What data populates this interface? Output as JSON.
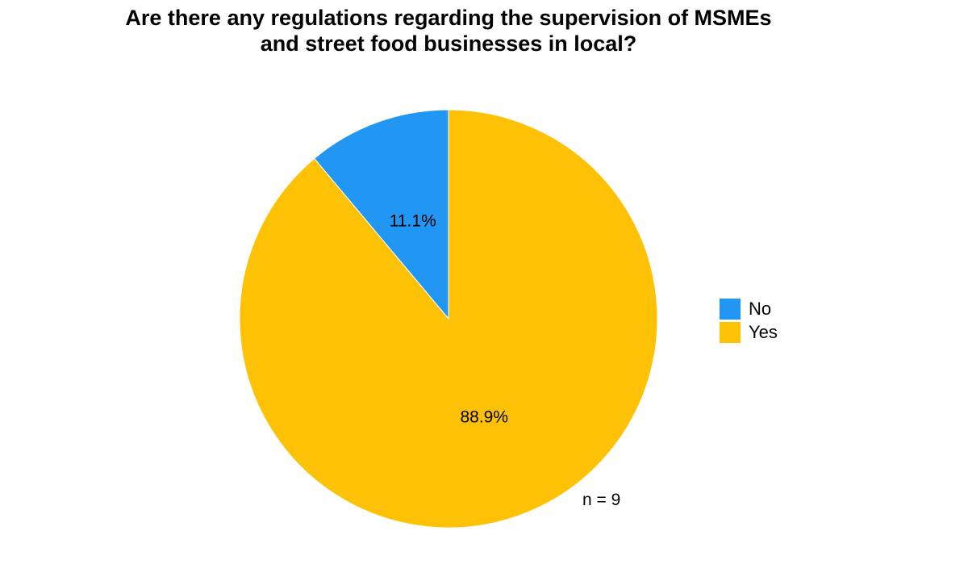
{
  "chart_data": {
    "type": "pie",
    "title_lines": [
      "Are there any regulations regarding the supervision of MSMEs",
      "and street food businesses in local?"
    ],
    "categories": [
      "No",
      "Yes"
    ],
    "values": [
      11.1,
      88.9
    ],
    "labels": [
      "11.1%",
      "88.9%"
    ],
    "colors": [
      "#2196F3",
      "#FDC106"
    ],
    "legend": {
      "placement": "right",
      "entries": [
        "No",
        "Yes"
      ]
    },
    "annotation": "n = 9",
    "start": "12 o'clock",
    "direction": "counterclockwise for first slice"
  }
}
